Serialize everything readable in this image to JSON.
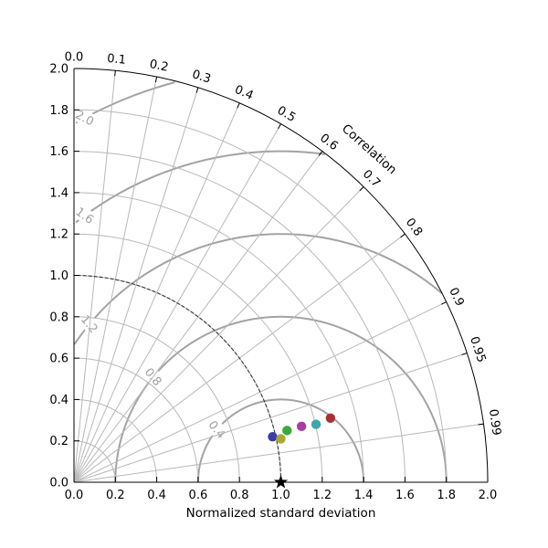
{
  "chart_data": {
    "type": "scatter",
    "subtype": "taylor-diagram",
    "xlabel": "Normalized standard deviation",
    "angular_label": "Correlation",
    "std_range": [
      0,
      2.0
    ],
    "std_ticks": [
      "0.0",
      "0.2",
      "0.4",
      "0.6",
      "0.8",
      "1.0",
      "1.2",
      "1.4",
      "1.6",
      "1.8",
      "2.0"
    ],
    "std_tick_values": [
      0,
      0.2,
      0.4,
      0.6,
      0.8,
      1.0,
      1.2,
      1.4,
      1.6,
      1.8,
      2.0
    ],
    "correlation_ticks": [
      {
        "label": "0.0",
        "value": 0.0
      },
      {
        "label": "0.1",
        "value": 0.1
      },
      {
        "label": "0.2",
        "value": 0.2
      },
      {
        "label": "0.3",
        "value": 0.3
      },
      {
        "label": "0.4",
        "value": 0.4
      },
      {
        "label": "0.5",
        "value": 0.5
      },
      {
        "label": "0.6",
        "value": 0.6
      },
      {
        "label": "0.7",
        "value": 0.7
      },
      {
        "label": "0.8",
        "value": 0.8
      },
      {
        "label": "0.9",
        "value": 0.9
      },
      {
        "label": "0.95",
        "value": 0.95
      },
      {
        "label": "0.99",
        "value": 0.99
      }
    ],
    "rms_contours": [
      {
        "value": 0.4,
        "label": "0.4"
      },
      {
        "value": 0.8,
        "label": "0.8"
      },
      {
        "value": 1.2,
        "label": "1.2"
      },
      {
        "value": 1.6,
        "label": "1.6"
      },
      {
        "value": 2.0,
        "label": "2.0"
      }
    ],
    "reference": {
      "std": 1.0,
      "correlation": 1.0
    },
    "reference_std_arc": 1.0,
    "grid": true,
    "points": [
      {
        "x": 0.96,
        "y": 0.22,
        "color": "#3c3ca8"
      },
      {
        "x": 1.0,
        "y": 0.21,
        "color": "#a8a832"
      },
      {
        "x": 1.03,
        "y": 0.25,
        "color": "#3ca83c"
      },
      {
        "x": 1.1,
        "y": 0.27,
        "color": "#a83ca8"
      },
      {
        "x": 1.17,
        "y": 0.28,
        "color": "#3ca8a8"
      },
      {
        "x": 1.24,
        "y": 0.31,
        "color": "#a83232"
      }
    ]
  }
}
